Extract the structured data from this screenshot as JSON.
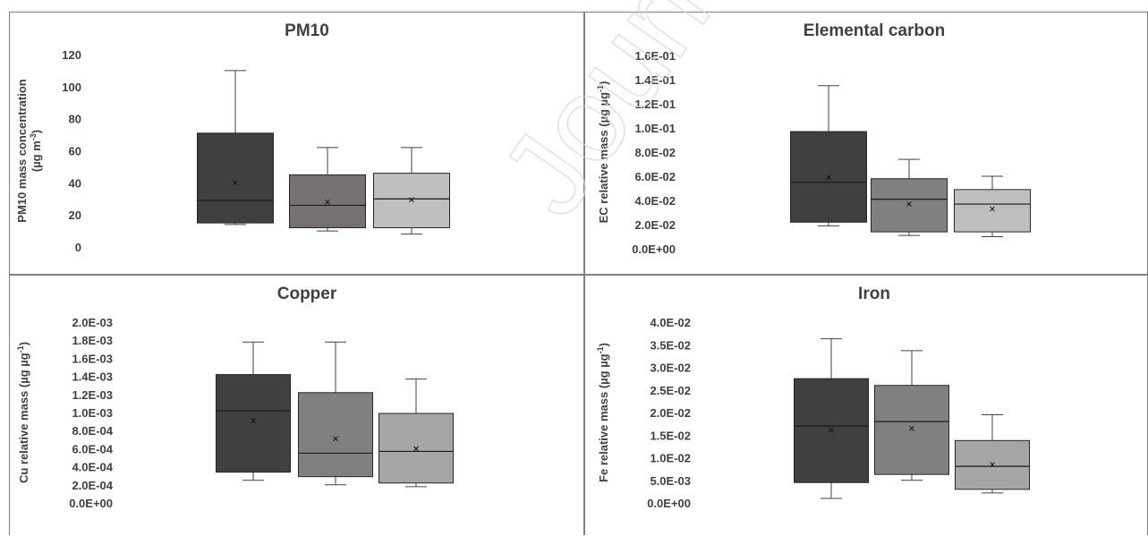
{
  "watermark": "Journal",
  "chart_data": [
    {
      "type": "boxplot",
      "title": "PM10",
      "ylabel": [
        "PM10 mass concentration",
        "(µg m",
        "-3",
        ")"
      ],
      "ylim": [
        0,
        120
      ],
      "yticks": [
        "0",
        "20",
        "40",
        "60",
        "80",
        "100",
        "120"
      ],
      "ytick_values": [
        0,
        20,
        40,
        60,
        80,
        100,
        120
      ],
      "colors": [
        "#404040",
        "#767171",
        "#bfbfbf"
      ],
      "boxes": [
        {
          "min": 14,
          "q1": 15,
          "median": 29,
          "q3": 71,
          "max": 110,
          "mean": 40
        },
        {
          "min": 10,
          "q1": 12,
          "median": 26,
          "q3": 45,
          "max": 62,
          "mean": 28
        },
        {
          "min": 8,
          "q1": 12,
          "median": 30,
          "q3": 46,
          "max": 62,
          "mean": 29.5
        }
      ]
    },
    {
      "type": "boxplot",
      "title": "Elemental carbon",
      "ylabel": [
        "EC relative mass (µg µg",
        "-1",
        ")"
      ],
      "ylim": [
        0,
        0.16
      ],
      "yticks": [
        "0.0E+00",
        "2.0E-02",
        "4.0E-02",
        "6.0E-02",
        "8.0E-02",
        "1.0E-01",
        "1.2E-01",
        "1.4E-01",
        "1.6E-01"
      ],
      "ytick_values": [
        0,
        0.02,
        0.04,
        0.06,
        0.08,
        0.1,
        0.12,
        0.14,
        0.16
      ],
      "colors": [
        "#404040",
        "#808080",
        "#bfbfbf"
      ],
      "boxes": [
        {
          "min": 0.019,
          "q1": 0.022,
          "median": 0.055,
          "q3": 0.097,
          "max": 0.135,
          "mean": 0.059
        },
        {
          "min": 0.011,
          "q1": 0.014,
          "median": 0.041,
          "q3": 0.058,
          "max": 0.074,
          "mean": 0.037
        },
        {
          "min": 0.01,
          "q1": 0.014,
          "median": 0.037,
          "q3": 0.049,
          "max": 0.06,
          "mean": 0.033
        }
      ]
    },
    {
      "type": "boxplot",
      "title": "Copper",
      "ylabel": [
        "Cu relative mass (µg µg",
        "-1",
        ")"
      ],
      "ylim": [
        0,
        0.002
      ],
      "yticks": [
        "0.0E+00",
        "2.0E-04",
        "4.0E-04",
        "6.0E-04",
        "8.0E-04",
        "1.0E-03",
        "1.2E-03",
        "1.4E-03",
        "1.6E-03",
        "1.8E-03",
        "2.0E-03"
      ],
      "ytick_values": [
        0,
        0.0002,
        0.0004,
        0.0006,
        0.0008,
        0.001,
        0.0012,
        0.0014,
        0.0016,
        0.0018,
        0.002
      ],
      "colors": [
        "#404040",
        "#808080",
        "#a6a6a6"
      ],
      "boxes": [
        {
          "min": 0.00025,
          "q1": 0.00034,
          "median": 0.00102,
          "q3": 0.00142,
          "max": 0.00178,
          "mean": 0.00091
        },
        {
          "min": 0.0002,
          "q1": 0.00029,
          "median": 0.00055,
          "q3": 0.00122,
          "max": 0.00178,
          "mean": 0.00071
        },
        {
          "min": 0.00018,
          "q1": 0.00022,
          "median": 0.00057,
          "q3": 0.00099,
          "max": 0.00137,
          "mean": 0.0006
        }
      ]
    },
    {
      "type": "boxplot",
      "title": "Iron",
      "ylabel": [
        "Fe relative mass (µg µg",
        "-1",
        ")"
      ],
      "ylim": [
        0,
        0.04
      ],
      "yticks": [
        "0.0E+00",
        "5.0E-03",
        "1.0E-02",
        "1.5E-02",
        "2.0E-02",
        "2.5E-02",
        "3.0E-02",
        "3.5E-02",
        "4.0E-02"
      ],
      "ytick_values": [
        0,
        0.005,
        0.01,
        0.015,
        0.02,
        0.025,
        0.03,
        0.035,
        0.04
      ],
      "colors": [
        "#404040",
        "#808080",
        "#a6a6a6"
      ],
      "boxes": [
        {
          "min": 0.001,
          "q1": 0.0045,
          "median": 0.017,
          "q3": 0.0275,
          "max": 0.0363,
          "mean": 0.0161
        },
        {
          "min": 0.005,
          "q1": 0.0063,
          "median": 0.018,
          "q3": 0.026,
          "max": 0.0337,
          "mean": 0.0165
        },
        {
          "min": 0.0022,
          "q1": 0.003,
          "median": 0.0081,
          "q3": 0.0138,
          "max": 0.0195,
          "mean": 0.0085
        }
      ]
    }
  ]
}
